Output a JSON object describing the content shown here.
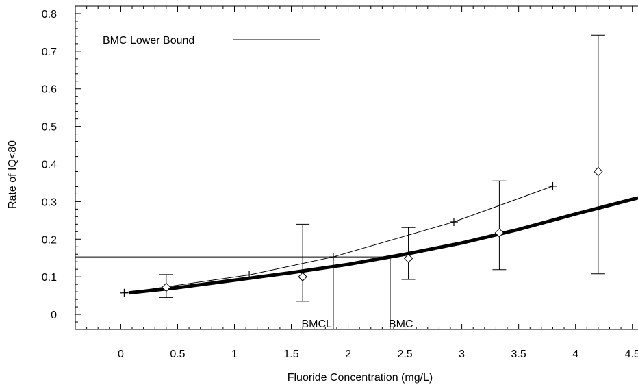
{
  "chart_data": {
    "type": "line",
    "title": "",
    "xlabel": "Fluoride Concentration (mg/L)",
    "ylabel": "Rate of IQ<80",
    "xlim": [
      -0.4,
      4.55
    ],
    "ylim": [
      -0.04,
      0.82
    ],
    "x_ticks": [
      0,
      0.5,
      1,
      1.5,
      2,
      2.5,
      3,
      3.5,
      4,
      4.5
    ],
    "x_tick_labels": [
      "0",
      "0.5",
      "1",
      "1.5",
      "2",
      "2.5",
      "3",
      "3.5",
      "4",
      "4.5"
    ],
    "y_ticks": [
      0,
      0.1,
      0.2,
      0.3,
      0.4,
      0.5,
      0.6,
      0.7,
      0.8
    ],
    "y_tick_labels": [
      "0",
      "0.1",
      "0.2",
      "0.3",
      "0.4",
      "0.5",
      "0.6",
      "0.7",
      "0.8"
    ],
    "legend": {
      "label": "BMC Lower Bound",
      "placement": "top-left"
    },
    "grid": false,
    "series": [
      {
        "name": "BMC Lower Bound",
        "style": "thin line with + markers",
        "x": [
          0.03,
          1.13,
          1.87,
          2.93,
          3.8
        ],
        "y": [
          0.057,
          0.105,
          0.153,
          0.246,
          0.341
        ]
      },
      {
        "style": "thick fitted curve",
        "x": [
          0.07,
          0.5,
          1.0,
          1.5,
          2.0,
          2.5,
          3.0,
          3.5,
          4.0,
          4.55
        ],
        "y": [
          0.057,
          0.071,
          0.091,
          0.111,
          0.133,
          0.16,
          0.19,
          0.226,
          0.267,
          0.31
        ]
      },
      {
        "style": "diamond markers with error bars",
        "x": [
          0.4,
          1.6,
          2.53,
          3.33,
          4.2
        ],
        "y": [
          0.072,
          0.1,
          0.149,
          0.217,
          0.38
        ],
        "y_low": [
          0.045,
          0.035,
          0.093,
          0.119,
          0.108
        ],
        "y_high": [
          0.106,
          0.24,
          0.231,
          0.355,
          0.743
        ]
      }
    ],
    "annotations": [
      {
        "text": "BMCL",
        "x": 1.87
      },
      {
        "text": "BMC",
        "x": 2.37
      }
    ],
    "reference_lines": {
      "bmr_y": 0.153,
      "bmcl_x": 1.87,
      "bmc_x": 2.37
    }
  }
}
